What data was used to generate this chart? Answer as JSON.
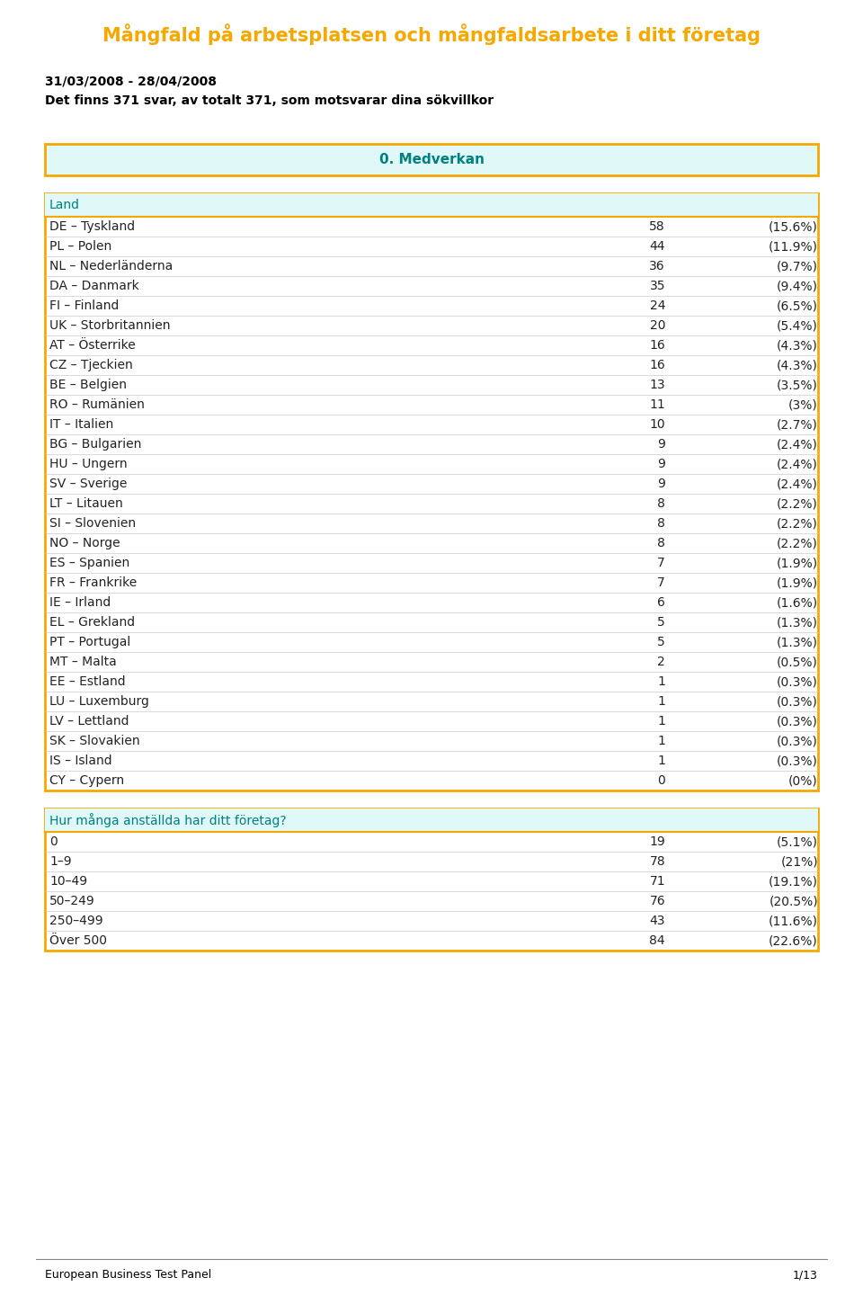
{
  "title": "Mångfald på arbetsplatsen och mångfaldsarbete i ditt företag",
  "date_line": "31/03/2008 - 28/04/2008",
  "subtitle": "Det finns 371 svar, av totalt 371, som motsvarar dina sökvillkor",
  "section1_title": "0. Medverkan",
  "table1_header": "Land",
  "table1_rows": [
    [
      "DE – Tyskland",
      "58",
      "(15.6%)"
    ],
    [
      "PL – Polen",
      "44",
      "(11.9%)"
    ],
    [
      "NL – Nederländerna",
      "36",
      "(9.7%)"
    ],
    [
      "DA – Danmark",
      "35",
      "(9.4%)"
    ],
    [
      "FI – Finland",
      "24",
      "(6.5%)"
    ],
    [
      "UK – Storbritannien",
      "20",
      "(5.4%)"
    ],
    [
      "AT – Österrike",
      "16",
      "(4.3%)"
    ],
    [
      "CZ – Tjeckien",
      "16",
      "(4.3%)"
    ],
    [
      "BE – Belgien",
      "13",
      "(3.5%)"
    ],
    [
      "RO – Rumänien",
      "11",
      "(3%)"
    ],
    [
      "IT – Italien",
      "10",
      "(2.7%)"
    ],
    [
      "BG – Bulgarien",
      "9",
      "(2.4%)"
    ],
    [
      "HU – Ungern",
      "9",
      "(2.4%)"
    ],
    [
      "SV – Sverige",
      "9",
      "(2.4%)"
    ],
    [
      "LT – Litauen",
      "8",
      "(2.2%)"
    ],
    [
      "SI – Slovenien",
      "8",
      "(2.2%)"
    ],
    [
      "NO – Norge",
      "8",
      "(2.2%)"
    ],
    [
      "ES – Spanien",
      "7",
      "(1.9%)"
    ],
    [
      "FR – Frankrike",
      "7",
      "(1.9%)"
    ],
    [
      "IE – Irland",
      "6",
      "(1.6%)"
    ],
    [
      "EL – Grekland",
      "5",
      "(1.3%)"
    ],
    [
      "PT – Portugal",
      "5",
      "(1.3%)"
    ],
    [
      "MT – Malta",
      "2",
      "(0.5%)"
    ],
    [
      "EE – Estland",
      "1",
      "(0.3%)"
    ],
    [
      "LU – Luxemburg",
      "1",
      "(0.3%)"
    ],
    [
      "LV – Lettland",
      "1",
      "(0.3%)"
    ],
    [
      "SK – Slovakien",
      "1",
      "(0.3%)"
    ],
    [
      "IS – Island",
      "1",
      "(0.3%)"
    ],
    [
      "CY – Cypern",
      "0",
      "(0%)"
    ]
  ],
  "table2_header": "Hur många anställda har ditt företag?",
  "table2_rows": [
    [
      "0",
      "19",
      "(5.1%)"
    ],
    [
      "1–9",
      "78",
      "(21%)"
    ],
    [
      "10–49",
      "71",
      "(19.1%)"
    ],
    [
      "50–249",
      "76",
      "(20.5%)"
    ],
    [
      "250–499",
      "43",
      "(11.6%)"
    ],
    [
      "Över 500",
      "84",
      "(22.6%)"
    ]
  ],
  "footer_left": "European Business Test Panel",
  "footer_right": "1/13",
  "title_color": "#F5A800",
  "header_bg": "#E0F8F8",
  "header_border": "#F5A800",
  "header_text_color": "#008080",
  "table_border_color": "#F5A800",
  "body_text_color": "#000000",
  "bg_color": "#FFFFFF",
  "row_text_color": "#222222",
  "font_size_title": 15,
  "font_size_body": 10,
  "font_size_header": 11,
  "font_size_footer": 9
}
